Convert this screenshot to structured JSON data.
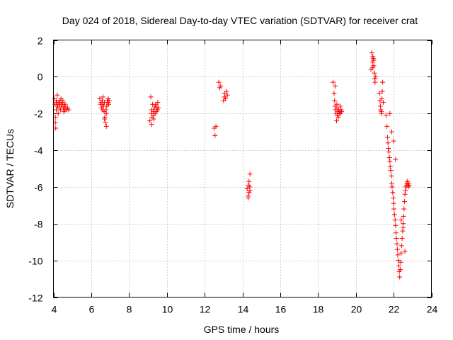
{
  "chart_data": {
    "type": "scatter",
    "title": "Day 024 of 2018, Sidereal Day-to-day VTEC variation (SDTVAR) for receiver crat",
    "xlabel": "GPS time / hours",
    "ylabel": "SDTVAR / TECUs",
    "xlim": [
      4,
      24
    ],
    "ylim": [
      -12,
      2
    ],
    "xticks": [
      4,
      6,
      8,
      10,
      12,
      14,
      16,
      18,
      20,
      22,
      24
    ],
    "yticks": [
      -12,
      -10,
      -8,
      -6,
      -4,
      -2,
      0,
      2
    ],
    "grid": true,
    "marker": "+",
    "color": "#ff0000",
    "series": [
      {
        "name": "SDTVAR",
        "x": [
          4.05,
          4.08,
          4.1,
          4.12,
          4.15,
          4.18,
          4.2,
          4.22,
          4.25,
          4.28,
          4.3,
          4.32,
          4.35,
          4.38,
          4.4,
          4.42,
          4.45,
          4.48,
          4.5,
          4.52,
          4.55,
          4.58,
          4.6,
          4.62,
          4.65,
          4.7,
          4.75,
          4.8,
          4.1,
          4.15,
          4.2,
          6.45,
          6.5,
          6.52,
          6.55,
          6.58,
          6.6,
          6.62,
          6.65,
          6.68,
          6.7,
          6.72,
          6.75,
          6.78,
          6.8,
          6.82,
          6.85,
          6.88,
          6.9,
          6.92,
          6.95,
          6.6,
          6.7,
          6.8,
          9.1,
          9.15,
          9.18,
          9.2,
          9.22,
          9.25,
          9.28,
          9.3,
          9.35,
          9.38,
          9.4,
          9.42,
          9.45,
          9.48,
          9.5,
          9.52,
          9.55,
          9.2,
          9.3,
          12.5,
          12.55,
          12.6,
          12.75,
          12.8,
          12.85,
          13.0,
          13.05,
          13.1,
          13.15,
          13.2,
          13.05,
          14.25,
          14.3,
          14.32,
          14.35,
          14.38,
          14.4,
          14.3,
          14.35,
          14.4,
          18.8,
          18.85,
          18.88,
          18.9,
          18.92,
          18.95,
          18.98,
          19.0,
          19.02,
          19.05,
          19.08,
          19.1,
          19.12,
          19.15,
          19.18,
          19.2,
          19.22,
          19.25,
          18.9,
          19.0,
          20.8,
          20.85,
          20.88,
          20.9,
          20.92,
          20.95,
          20.98,
          21.0,
          21.02,
          21.05,
          20.9,
          20.95,
          21.25,
          21.28,
          21.3,
          21.32,
          21.35,
          21.38,
          21.4,
          21.42,
          21.45,
          21.35,
          21.6,
          21.65,
          21.68,
          21.7,
          21.72,
          21.75,
          21.78,
          21.8,
          21.82,
          21.85,
          21.88,
          21.9,
          21.92,
          21.95,
          21.98,
          22.0,
          22.02,
          22.05,
          22.08,
          22.1,
          22.12,
          22.15,
          22.18,
          22.2,
          22.22,
          22.25,
          22.28,
          22.3,
          22.32,
          22.35,
          22.38,
          22.4,
          22.42,
          22.45,
          22.48,
          22.5,
          22.52,
          22.55,
          22.58,
          22.6,
          22.62,
          22.65,
          22.68,
          22.7,
          22.72,
          22.75,
          22.78,
          22.8,
          22.82,
          21.8,
          21.9,
          22.0,
          22.1,
          22.4,
          22.5,
          22.6
        ],
        "y": [
          -1.2,
          -1.5,
          -2.5,
          -2.8,
          -1.8,
          -1.3,
          -1.0,
          -1.6,
          -2.0,
          -1.4,
          -1.7,
          -1.5,
          -1.3,
          -1.8,
          -1.2,
          -1.5,
          -1.6,
          -1.4,
          -1.3,
          -1.7,
          -1.9,
          -1.6,
          -1.8,
          -1.5,
          -1.7,
          -1.8,
          -1.7,
          -1.8,
          -2.2,
          -1.4,
          -1.6,
          -1.2,
          -1.5,
          -1.4,
          -1.7,
          -1.3,
          -1.5,
          -1.1,
          -1.6,
          -1.9,
          -1.4,
          -2.2,
          -2.5,
          -1.8,
          -2.7,
          -1.6,
          -1.3,
          -1.4,
          -1.2,
          -1.5,
          -1.3,
          -1.8,
          -2.3,
          -2.0,
          -2.4,
          -1.1,
          -2.0,
          -1.8,
          -2.2,
          -1.5,
          -1.9,
          -2.1,
          -1.7,
          -2.0,
          -1.6,
          -1.5,
          -1.9,
          -1.7,
          -1.8,
          -1.4,
          -1.7,
          -2.6,
          -2.3,
          -2.8,
          -3.2,
          -2.7,
          -0.3,
          -0.6,
          -0.5,
          -1.3,
          -0.9,
          -1.2,
          -0.8,
          -1.0,
          -1.1,
          -6.1,
          -6.5,
          -5.9,
          -6.3,
          -6.0,
          -5.3,
          -6.6,
          -5.7,
          -6.2,
          -0.3,
          -0.9,
          -1.3,
          -1.6,
          -1.8,
          -2.0,
          -2.4,
          -1.7,
          -2.1,
          -1.9,
          -2.2,
          -1.8,
          -2.0,
          -1.9,
          -1.6,
          -2.0,
          -1.8,
          -1.9,
          -0.5,
          -1.5,
          0.4,
          1.3,
          0.8,
          0.5,
          1.0,
          0.6,
          0.2,
          -0.1,
          -0.3,
          0.0,
          1.1,
          0.9,
          -0.9,
          -1.3,
          -1.6,
          -1.8,
          -2.0,
          -1.2,
          -0.8,
          -0.3,
          -1.4,
          -1.9,
          -2.1,
          -2.7,
          -3.3,
          -3.6,
          -3.9,
          -4.1,
          -4.4,
          -4.6,
          -4.9,
          -5.1,
          -5.4,
          -5.8,
          -6.0,
          -6.3,
          -6.6,
          -6.9,
          -7.2,
          -7.5,
          -7.8,
          -8.1,
          -8.5,
          -8.8,
          -9.1,
          -9.4,
          -9.7,
          -10.0,
          -10.3,
          -10.6,
          -10.9,
          -10.5,
          -10.1,
          -9.6,
          -9.2,
          -8.8,
          -8.4,
          -8.0,
          -7.6,
          -7.2,
          -6.8,
          -6.4,
          -6.2,
          -6.0,
          -5.9,
          -5.8,
          -5.7,
          -5.9,
          -6.0,
          -5.8,
          -5.9,
          -2.0,
          -3.0,
          -3.5,
          -4.5,
          -7.8,
          -8.2,
          -9.5
        ]
      }
    ]
  }
}
